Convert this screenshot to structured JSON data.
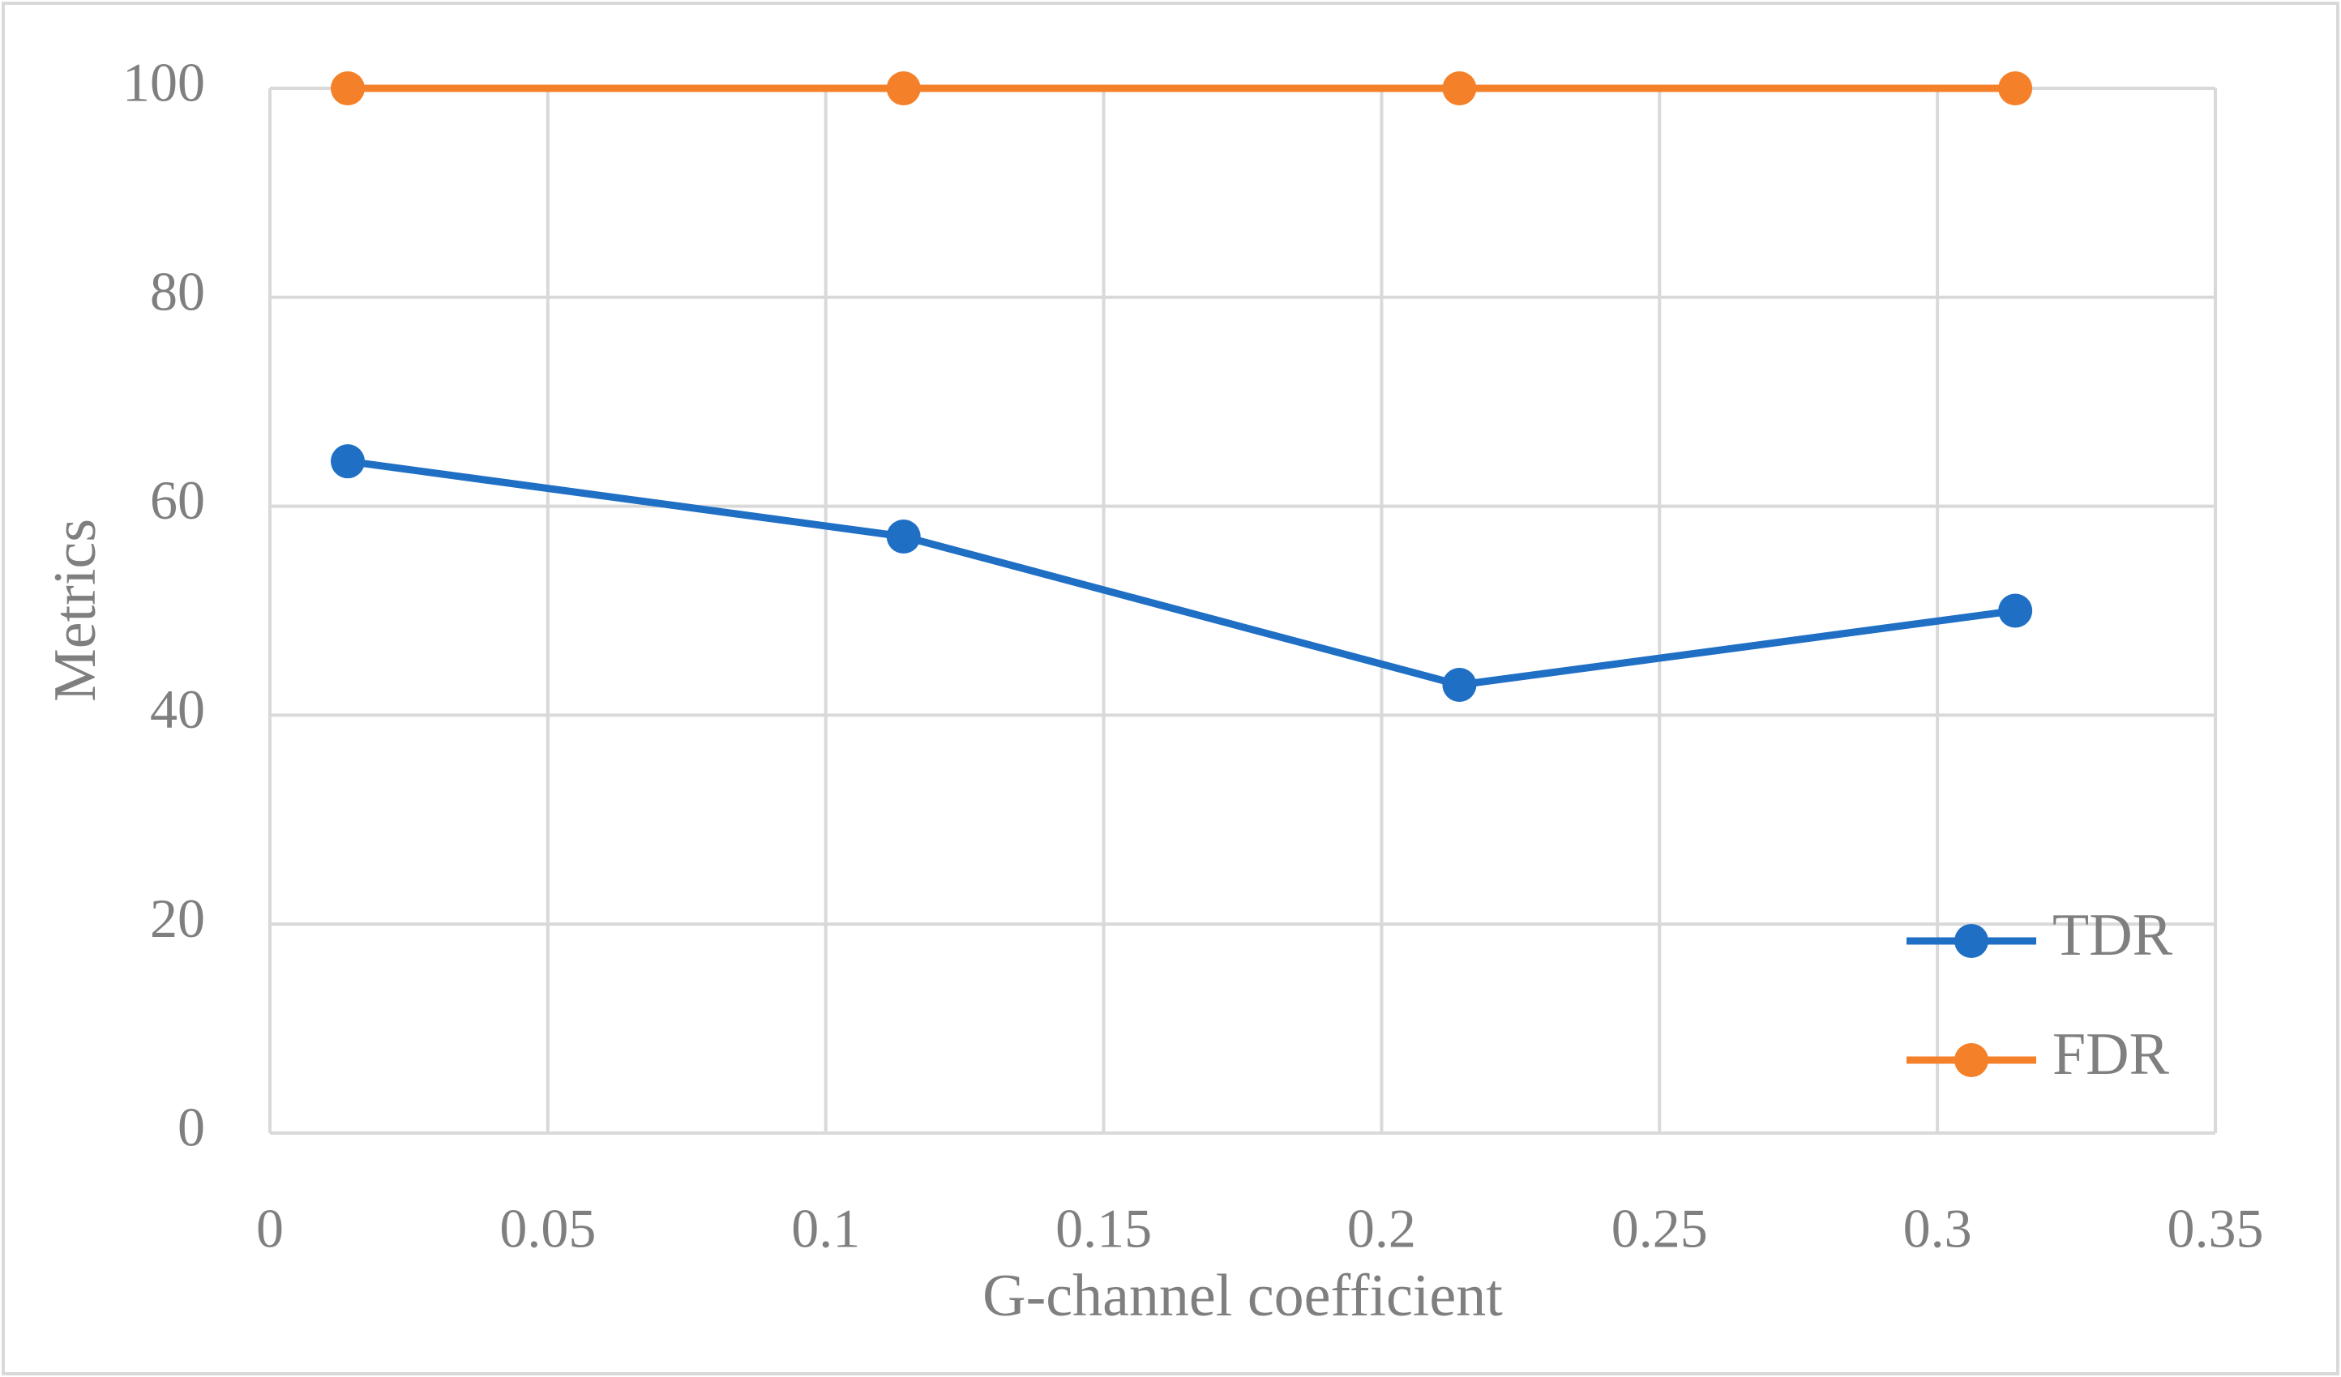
{
  "chart_data": {
    "type": "line",
    "x_label": "G-channel coefficient",
    "y_label": "Metrics",
    "xlim": [
      0,
      0.35
    ],
    "xticks": [
      0,
      0.05,
      0.1,
      0.15,
      0.2,
      0.25,
      0.3,
      0.35
    ],
    "ylim": [
      0,
      100
    ],
    "yticks": [
      0,
      20,
      40,
      60,
      80,
      100
    ],
    "grid": true,
    "legend_position": "lower right",
    "series": [
      {
        "name": "TDR",
        "color": "#1f6fc5",
        "x": [
          0.014,
          0.114,
          0.214,
          0.314
        ],
        "values": [
          64.3,
          57.1,
          42.9,
          50
        ]
      },
      {
        "name": "FDR",
        "color": "#f5802a",
        "x": [
          0.014,
          0.114,
          0.214,
          0.314
        ],
        "values": [
          100,
          100,
          100,
          100
        ]
      }
    ]
  }
}
